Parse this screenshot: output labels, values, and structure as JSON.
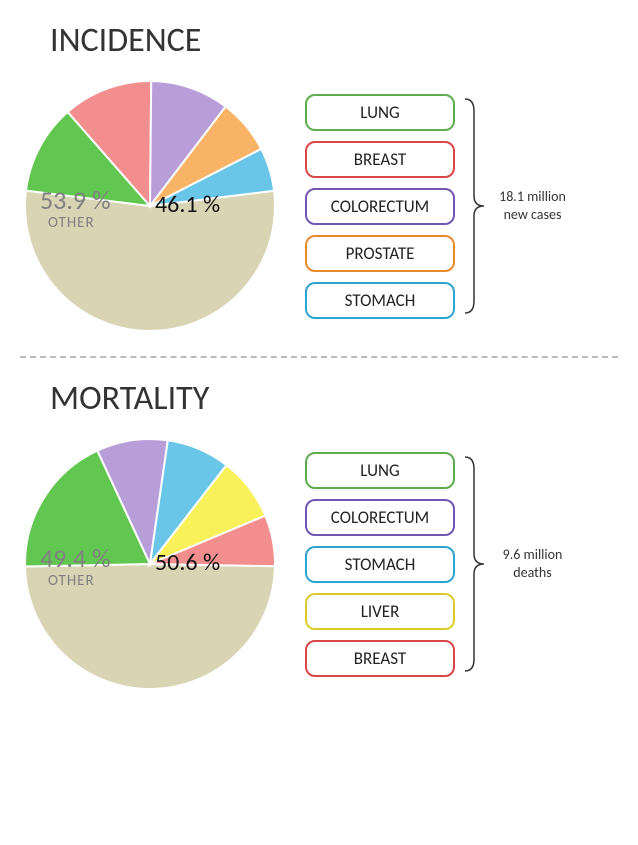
{
  "incidence": {
    "title": "INCIDENCE",
    "other_pct": "53.9 %",
    "other_label": "OTHER",
    "right_pct": "46.1 %",
    "stat_line1": "18.1 million",
    "stat_line2": "new cases",
    "pie": {
      "radius": 125,
      "slices": [
        {
          "label": "OTHER",
          "value": 53.9,
          "color": "#d9d4b4"
        },
        {
          "label": "LUNG",
          "value": 11.6,
          "color": "#61c750"
        },
        {
          "label": "BREAST",
          "value": 11.6,
          "color": "#f38e8e"
        },
        {
          "label": "COLORECTUM",
          "value": 10.2,
          "color": "#b89ed9"
        },
        {
          "label": "PROSTATE",
          "value": 7.1,
          "color": "#f9b366"
        },
        {
          "label": "STOMACH",
          "value": 5.6,
          "color": "#6ac6e8"
        }
      ],
      "start_angle_deg": 83
    },
    "legend": [
      {
        "label": "LUNG",
        "border": "#60ad4f"
      },
      {
        "label": "BREAST",
        "border": "#d94747"
      },
      {
        "label": "COLORECTUM",
        "border": "#7455b2"
      },
      {
        "label": "PROSTATE",
        "border": "#e88b2e"
      },
      {
        "label": "STOMACH",
        "border": "#2ea4d1"
      }
    ]
  },
  "mortality": {
    "title": "MORTALITY",
    "other_pct": "49.4 %",
    "other_label": "OTHER",
    "right_pct": "50.6 %",
    "stat_line1": "9.6 million",
    "stat_line2": "deaths",
    "pie": {
      "radius": 125,
      "slices": [
        {
          "label": "OTHER",
          "value": 49.4,
          "color": "#d9d4b4"
        },
        {
          "label": "LUNG",
          "value": 18.4,
          "color": "#61c750"
        },
        {
          "label": "COLORECTUM",
          "value": 9.2,
          "color": "#b89ed9"
        },
        {
          "label": "STOMACH",
          "value": 8.2,
          "color": "#6ac6e8"
        },
        {
          "label": "LIVER",
          "value": 8.2,
          "color": "#f9f15a"
        },
        {
          "label": "BREAST",
          "value": 6.6,
          "color": "#f38e8e"
        }
      ],
      "start_angle_deg": 91
    },
    "legend": [
      {
        "label": "LUNG",
        "border": "#60ad4f"
      },
      {
        "label": "COLORECTUM",
        "border": "#7455b2"
      },
      {
        "label": "STOMACH",
        "border": "#2ea4d1"
      },
      {
        "label": "LIVER",
        "border": "#d9cc2a"
      },
      {
        "label": "BREAST",
        "border": "#d94747"
      }
    ]
  },
  "style": {
    "title_fontsize": 34,
    "title_color": "#333333",
    "pct_other_fontsize": 26,
    "pct_other_color": "#808080",
    "pct_right_fontsize": 24,
    "pct_right_color": "#111111",
    "legend_fontsize": 17,
    "legend_border_radius": 10,
    "legend_border_width": 2.5,
    "stat_fontsize": 14,
    "bracket_color": "#333333",
    "divider_color": "#bbbbbb",
    "background": "#ffffff",
    "pie_stroke": "#ffffff",
    "pie_stroke_width": 2
  }
}
